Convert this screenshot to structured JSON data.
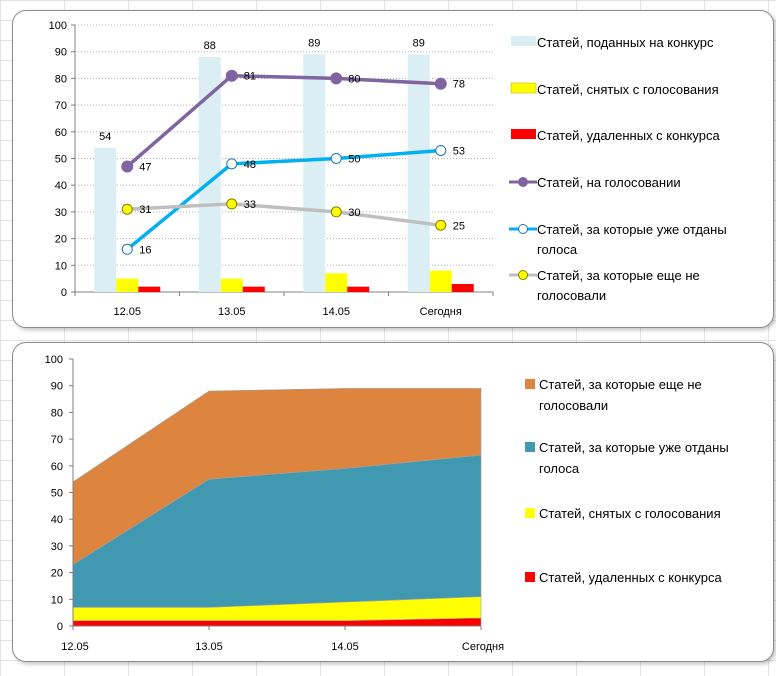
{
  "chart_data": [
    {
      "type": "bar",
      "categories": [
        "12.05",
        "13.05",
        "14.05",
        "Сегодня"
      ],
      "ylim": [
        0,
        100
      ],
      "yticks": [
        0,
        10,
        20,
        30,
        40,
        50,
        60,
        70,
        80,
        90,
        100
      ],
      "grid": "horizontal dotted",
      "legend": "right",
      "series": [
        {
          "key": "submitted",
          "kind": "bar",
          "name": "Статей, поданных на конкурс",
          "values": [
            54,
            88,
            89,
            89
          ],
          "labels": [
            "54",
            "88",
            "89",
            "89"
          ],
          "color": "#daeef3"
        },
        {
          "key": "withdrawn",
          "kind": "bar",
          "name": "Статей, снятых с голосования",
          "values": [
            5,
            5,
            7,
            8
          ],
          "color": "#ffff00"
        },
        {
          "key": "deleted",
          "kind": "bar",
          "name": "Статей, удаленных с конкурса",
          "values": [
            2,
            2,
            2,
            3
          ],
          "color": "#ff0000"
        },
        {
          "key": "voting",
          "kind": "line",
          "name": "Статей, на голосовании",
          "values": [
            47,
            81,
            80,
            78
          ],
          "labels": [
            "47",
            "81",
            "80",
            "78"
          ],
          "color": "#8064a2",
          "marker": "filled"
        },
        {
          "key": "voted",
          "kind": "line",
          "name_lines": [
            "Статей, за которые уже отданы",
            "голоса"
          ],
          "values": [
            16,
            48,
            50,
            53
          ],
          "labels": [
            "16",
            "48",
            "50",
            "53"
          ],
          "color": "#00b0f0",
          "marker": "hollow"
        },
        {
          "key": "not_voted",
          "kind": "line",
          "name_lines": [
            "Статей, за которые еще не",
            "голосовали"
          ],
          "values": [
            31,
            33,
            30,
            25
          ],
          "labels": [
            "31",
            "33",
            "30",
            "25"
          ],
          "color": "#bfbfbf",
          "marker": "yellow"
        }
      ]
    },
    {
      "type": "area",
      "stacked": true,
      "categories": [
        "12.05",
        "13.05",
        "14.05",
        "Сегодня"
      ],
      "ylim": [
        0,
        100
      ],
      "yticks": [
        0,
        10,
        20,
        30,
        40,
        50,
        60,
        70,
        80,
        90,
        100
      ],
      "legend": "right",
      "series": [
        {
          "key": "deleted",
          "name": "Статей, удаленных с конкурса",
          "values": [
            2,
            2,
            2,
            3
          ],
          "color": "#ff0000"
        },
        {
          "key": "withdrawn",
          "name": "Статей, снятых с голосования",
          "values": [
            5,
            5,
            7,
            8
          ],
          "color": "#ffff00"
        },
        {
          "key": "voted",
          "name_lines": [
            "Статей, за которые уже отданы",
            "голоса"
          ],
          "values": [
            16,
            48,
            50,
            53
          ],
          "color": "#4199b1"
        },
        {
          "key": "not_voted",
          "name_lines": [
            "Статей, за которые еще не",
            "голосовали"
          ],
          "values": [
            31,
            33,
            30,
            25
          ],
          "color": "#dd853f"
        }
      ],
      "legend_order": [
        "not_voted",
        "voted",
        "withdrawn",
        "deleted"
      ]
    }
  ]
}
